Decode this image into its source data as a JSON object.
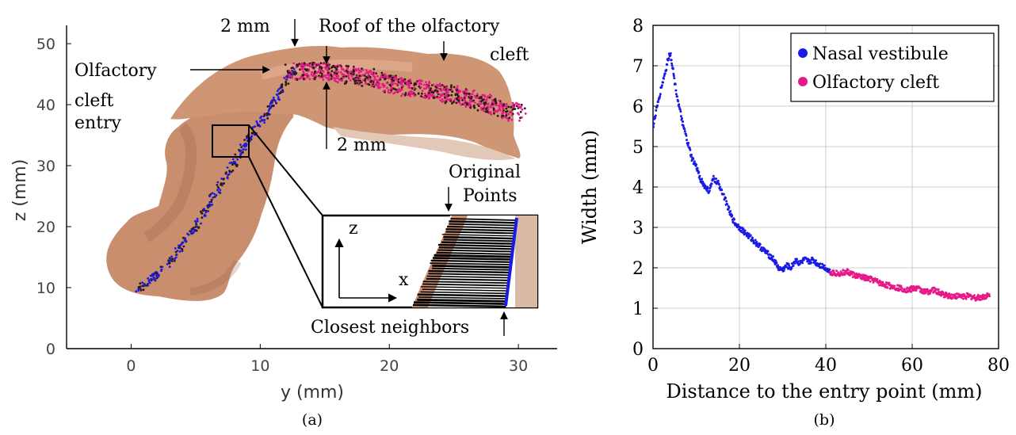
{
  "colors": {
    "nasal_vestibule": "#1a1ae6",
    "olfactory_cleft": "#e6198a",
    "tissue": "#c98e6e",
    "tissue_dark": "#8f5a3f"
  },
  "chart_data": [
    {
      "id": "a",
      "type": "scatter",
      "panel_label": "(a)",
      "xlabel": "y (mm)",
      "ylabel": "z (mm)",
      "xlim": [
        -5,
        33
      ],
      "ylim": [
        0,
        53
      ],
      "xticks": [
        "0",
        "10",
        "20",
        "30"
      ],
      "yticks": [
        "0",
        "10",
        "20",
        "30",
        "40",
        "50"
      ],
      "annotations": {
        "width_top": "2 mm",
        "width_bottom": "2 mm",
        "roof_line1": "Roof of the olfactory",
        "roof_line2": "cleft",
        "entry_line1": "Olfactory",
        "entry_line2": "cleft",
        "entry_line3": "entry",
        "original_line1": "Original",
        "original_line2": "Points",
        "closest": "Closest neighbors",
        "inset_z": "z",
        "inset_x": "x"
      },
      "centerline_nasal": {
        "y": [
          0.5,
          3,
          5,
          7,
          9,
          11,
          12.5
        ],
        "z": [
          9.5,
          14,
          20,
          27,
          34,
          40,
          45.5
        ]
      },
      "centerline_cleft": {
        "y": [
          12.5,
          15,
          18,
          21,
          24,
          27,
          30
        ],
        "z": [
          45.5,
          45.5,
          44.5,
          43,
          42,
          40.5,
          38.5
        ]
      }
    },
    {
      "id": "b",
      "type": "scatter",
      "panel_label": "(b)",
      "xlabel": "Distance to the entry point (mm)",
      "ylabel": "Width (mm)",
      "xlim": [
        0,
        80
      ],
      "ylim": [
        0,
        8
      ],
      "xticks": [
        "0",
        "20",
        "40",
        "60",
        "80"
      ],
      "yticks": [
        "0",
        "1",
        "2",
        "3",
        "4",
        "5",
        "6",
        "7",
        "8"
      ],
      "legend_position": "top-right",
      "series": [
        {
          "name": "Nasal vestibule",
          "x": [
            0,
            1,
            2,
            3,
            3.5,
            4,
            4.5,
            5,
            6,
            7,
            8,
            9,
            10,
            11,
            12,
            13,
            14,
            15,
            16,
            17,
            18,
            19,
            20,
            22,
            24,
            26,
            28,
            29,
            30,
            31,
            32,
            33,
            34,
            35,
            36,
            37,
            38,
            39,
            40,
            41
          ],
          "y": [
            5.5,
            6.0,
            6.5,
            6.9,
            7.2,
            7.3,
            7.0,
            6.6,
            6.0,
            5.5,
            5.1,
            4.7,
            4.5,
            4.2,
            4.0,
            3.9,
            4.2,
            4.1,
            3.9,
            3.6,
            3.3,
            3.1,
            3.0,
            2.8,
            2.6,
            2.4,
            2.2,
            2.0,
            1.95,
            2.05,
            2.0,
            2.2,
            2.1,
            2.2,
            2.15,
            2.2,
            2.1,
            2.05,
            2.0,
            1.9
          ]
        },
        {
          "name": "Olfactory cleft",
          "x": [
            41,
            43,
            45,
            47,
            49,
            51,
            53,
            55,
            57,
            59,
            61,
            63,
            65,
            67,
            69,
            71,
            73,
            75,
            77,
            78
          ],
          "y": [
            1.9,
            1.85,
            1.9,
            1.8,
            1.75,
            1.7,
            1.6,
            1.55,
            1.5,
            1.45,
            1.5,
            1.4,
            1.45,
            1.35,
            1.3,
            1.3,
            1.3,
            1.25,
            1.3,
            1.3
          ]
        }
      ]
    }
  ]
}
